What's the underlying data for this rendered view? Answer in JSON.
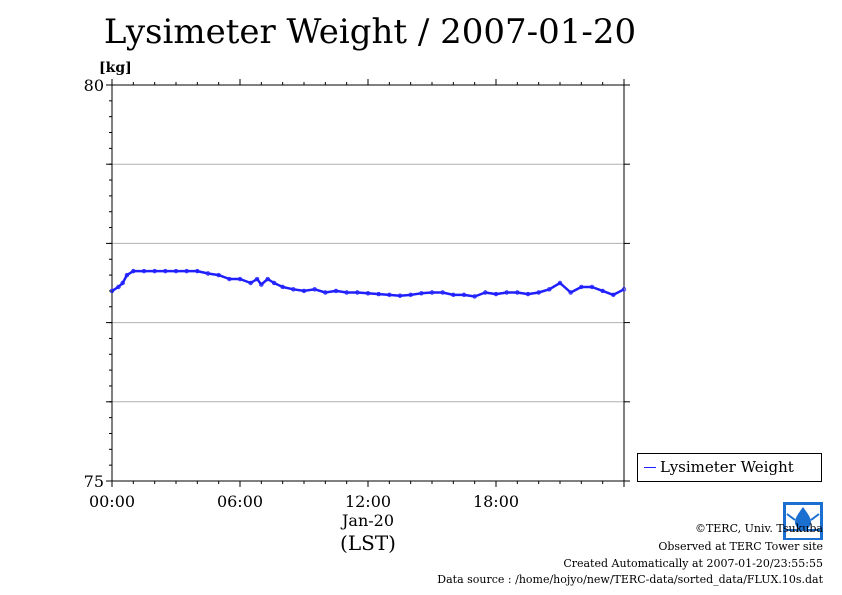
{
  "chart_data": {
    "type": "line",
    "title": "Lysimeter Weight / 2007-01-20",
    "ylabel": "[kg]",
    "xlabel": "(LST)",
    "date_label": "Jan-20",
    "ylim": [
      75,
      80
    ],
    "yticks": [
      75,
      76,
      77,
      78,
      79,
      80
    ],
    "ytick_labels": [
      "75",
      "",
      "",
      "",
      "",
      "80"
    ],
    "xlim": [
      "00:00",
      "24:00"
    ],
    "xticks": [
      "00:00",
      "06:00",
      "12:00",
      "18:00"
    ],
    "grid": "horizontal",
    "legend": "bottom-right",
    "series": [
      {
        "name": "Lysimeter Weight",
        "color": "#2020ff",
        "x_hours": [
          0.0,
          0.3,
          0.5,
          0.7,
          1.0,
          1.5,
          2.0,
          2.5,
          3.0,
          3.5,
          4.0,
          4.5,
          5.0,
          5.5,
          6.0,
          6.5,
          6.8,
          7.0,
          7.3,
          7.6,
          8.0,
          8.5,
          9.0,
          9.5,
          10.0,
          10.5,
          11.0,
          11.5,
          12.0,
          12.5,
          13.0,
          13.5,
          14.0,
          14.5,
          15.0,
          15.5,
          16.0,
          16.5,
          17.0,
          17.5,
          18.0,
          18.5,
          19.0,
          19.5,
          20.0,
          20.5,
          21.0,
          21.5,
          22.0,
          22.5,
          23.0,
          23.5,
          24.0
        ],
        "values": [
          77.4,
          77.45,
          77.5,
          77.6,
          77.65,
          77.65,
          77.65,
          77.65,
          77.65,
          77.65,
          77.65,
          77.62,
          77.6,
          77.55,
          77.55,
          77.5,
          77.55,
          77.48,
          77.55,
          77.5,
          77.45,
          77.42,
          77.4,
          77.42,
          77.38,
          77.4,
          77.38,
          77.38,
          77.37,
          77.36,
          77.35,
          77.34,
          77.35,
          77.37,
          77.38,
          77.38,
          77.35,
          77.35,
          77.33,
          77.38,
          77.36,
          77.38,
          77.38,
          77.36,
          77.38,
          77.42,
          77.5,
          77.38,
          77.45,
          77.45,
          77.4,
          77.35,
          77.42
        ]
      }
    ]
  },
  "credits": {
    "copyright": "©TERC, Univ. Tsukuba",
    "site": "Observed at TERC Tower site",
    "created": "Created Automatically at 2007-01-20/23:55:55",
    "source": "Data source : /home/hojyo/new/TERC-data/sorted_data/FLUX.10s.dat"
  }
}
